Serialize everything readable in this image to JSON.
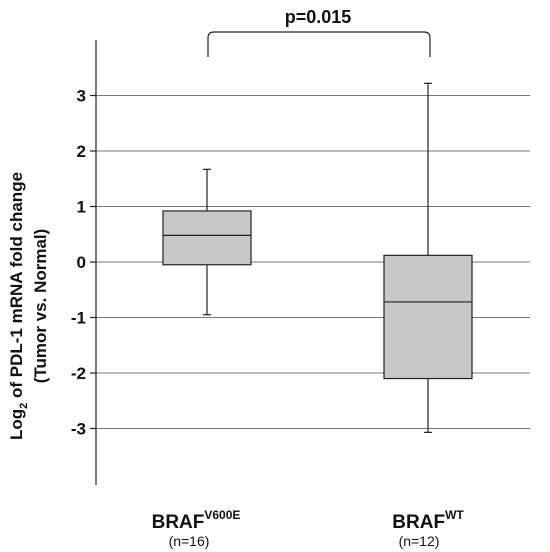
{
  "chart_data": {
    "type": "boxplot",
    "ylabel_line1_prefix": "Log",
    "ylabel_line1_subscript": "2",
    "ylabel_line1_suffix": " of PDL-1 mRNA fold change",
    "ylabel_line2": "(Tumor vs. Normal)",
    "yticks": [
      3,
      2,
      1,
      0,
      -1,
      -2,
      -3
    ],
    "ylim": [
      -4.2,
      4.05
    ],
    "grid": "horizontal",
    "groups": [
      {
        "name": "BRAF",
        "superscript": "V600E",
        "n_label": "(n=16)",
        "whisker_low": -0.95,
        "q1": -0.05,
        "median": 0.48,
        "q3": 0.92,
        "whisker_high": 1.67
      },
      {
        "name": "BRAF",
        "superscript": "WT",
        "n_label": "(n=12)",
        "whisker_low": -3.07,
        "q1": -2.1,
        "median": -0.72,
        "q3": 0.12,
        "whisker_high": 3.22
      }
    ],
    "annotation": "p=0.015",
    "box_fill": "#c8c8c8",
    "line_color": "#222222",
    "grid_color": "#777777"
  }
}
